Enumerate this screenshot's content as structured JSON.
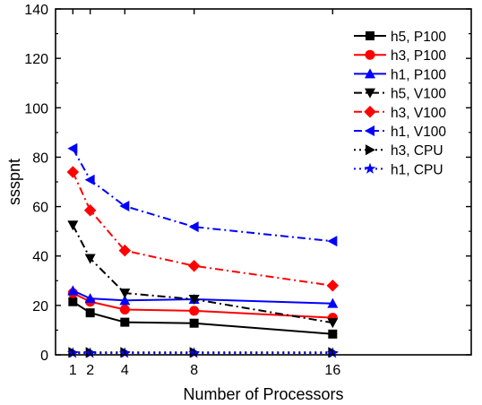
{
  "chart_data": {
    "type": "line",
    "xlabel": "Number of Processors",
    "ylabel": "ssspnt",
    "xlim": [
      0,
      24
    ],
    "ylim": [
      0,
      140
    ],
    "xticks": [
      1,
      2,
      4,
      8,
      16
    ],
    "yticks": [
      0,
      20,
      40,
      60,
      80,
      100,
      120,
      140
    ],
    "legend_position": "top-right",
    "x": [
      1,
      2,
      4,
      8,
      16
    ],
    "series": [
      {
        "name": "h5, P100",
        "color": "#000000",
        "dash": "solid",
        "marker": "square",
        "values": [
          21.5,
          17.0,
          13.2,
          12.8,
          8.4
        ]
      },
      {
        "name": "h3, P100",
        "color": "#ff0000",
        "dash": "solid",
        "marker": "circle",
        "values": [
          25.0,
          21.5,
          18.3,
          17.8,
          15.0
        ]
      },
      {
        "name": "h1, P100",
        "color": "#0000ff",
        "dash": "solid",
        "marker": "triangle-up",
        "values": [
          26.0,
          22.8,
          22.0,
          22.5,
          20.8
        ]
      },
      {
        "name": "h5, V100",
        "color": "#000000",
        "dash": "dashdot",
        "marker": "triangle-down",
        "values": [
          52.5,
          39.0,
          25.0,
          22.5,
          13.0
        ]
      },
      {
        "name": "h3, V100",
        "color": "#ff0000",
        "dash": "dashdot",
        "marker": "diamond",
        "values": [
          74.0,
          58.5,
          42.2,
          36.0,
          28.0
        ]
      },
      {
        "name": "h1, V100",
        "color": "#0000ff",
        "dash": "dashdot",
        "marker": "triangle-left",
        "values": [
          83.5,
          70.8,
          60.2,
          51.8,
          46.0
        ]
      },
      {
        "name": "h3, CPU",
        "color": "#000000",
        "dash": "dotted",
        "marker": "triangle-right",
        "values": [
          1.0,
          1.0,
          1.0,
          1.0,
          1.0
        ]
      },
      {
        "name": "h1, CPU",
        "color": "#0000ff",
        "dash": "dotted",
        "marker": "star",
        "values": [
          0.7,
          0.7,
          0.7,
          0.7,
          0.7
        ]
      }
    ]
  }
}
